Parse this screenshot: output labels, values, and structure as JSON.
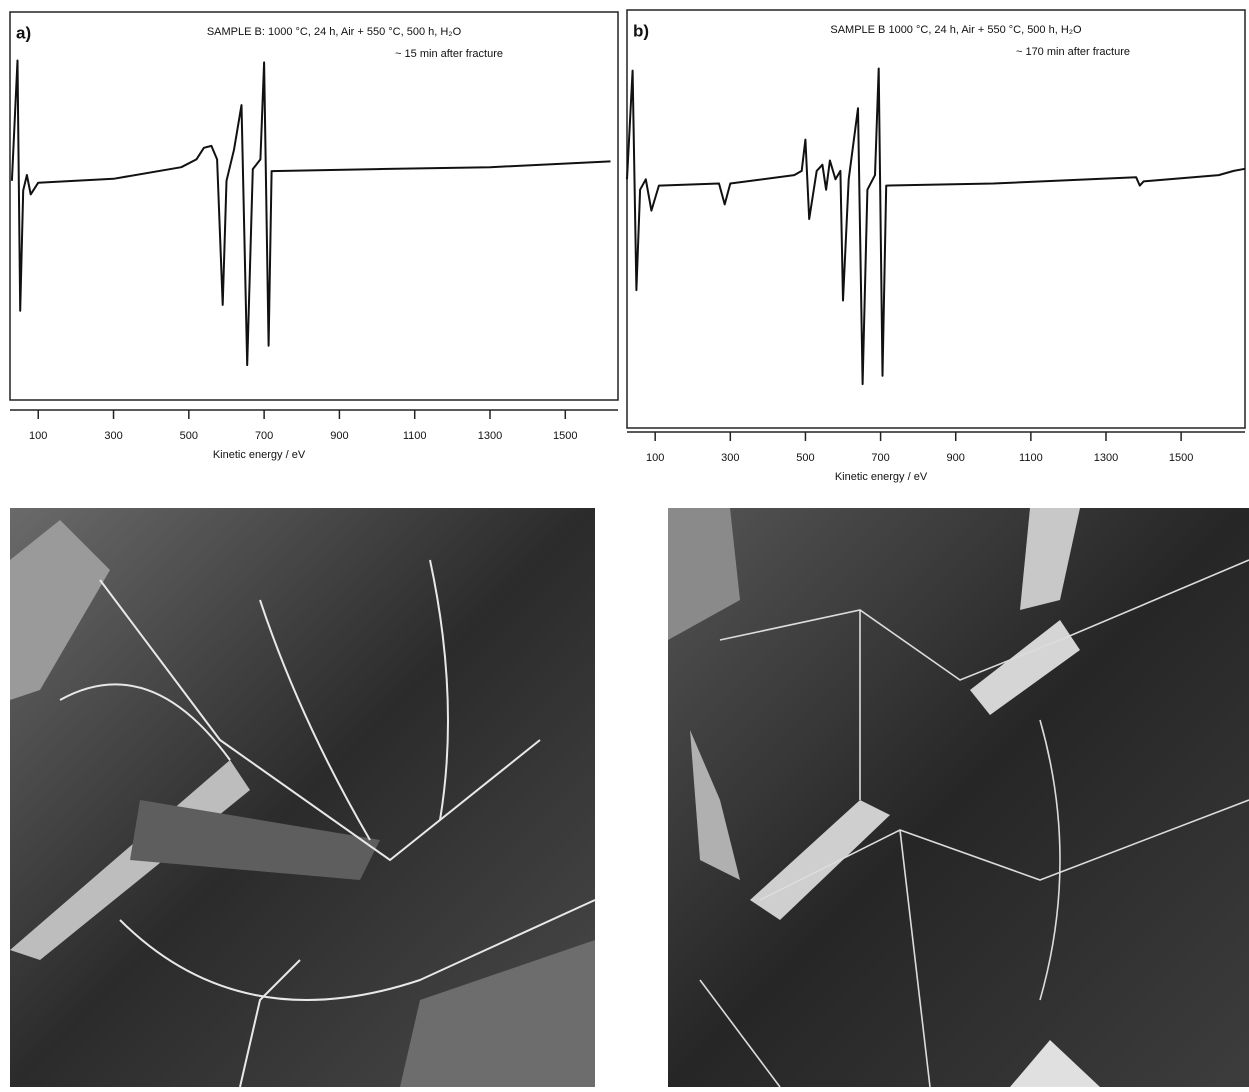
{
  "chart_data": [
    {
      "type": "line",
      "panel_label": "a)",
      "title": "SAMPLE B: 1000 °C, 24 h, Air + 550 °C, 500 h, H₂O",
      "subtitle": "~ 15 min after fracture",
      "x_label": "Kinetic energy / eV",
      "x": [
        30,
        45,
        52,
        60,
        70,
        80,
        100,
        300,
        480,
        520,
        540,
        560,
        575,
        590,
        600,
        620,
        640,
        655,
        670,
        690,
        700,
        712,
        720,
        1000,
        1300,
        1620
      ],
      "series": [
        {
          "color": "#111111",
          "values": [
            13,
            75,
            -54,
            8,
            16,
            6,
            12,
            14,
            20,
            24,
            30,
            31,
            24,
            -51,
            13,
            29,
            52,
            -82,
            19,
            24,
            74,
            -72,
            18,
            19,
            20,
            23
          ]
        }
      ],
      "xlim": [
        25,
        1640
      ],
      "ylim": [
        -100,
        100
      ],
      "xticks": [
        100,
        300,
        500,
        700,
        900,
        1100,
        1300,
        1500
      ]
    },
    {
      "type": "line",
      "panel_label": "b)",
      "title": "SAMPLE B 1000 °C, 24 h, Air + 550 °C, 500 h, H₂O",
      "subtitle": "~ 170 min after fracture",
      "x_label": "Kinetic energy / eV",
      "x": [
        25,
        40,
        50,
        60,
        75,
        90,
        110,
        270,
        285,
        300,
        470,
        490,
        500,
        510,
        530,
        545,
        555,
        565,
        580,
        593,
        600,
        615,
        640,
        652,
        665,
        685,
        695,
        705,
        715,
        1000,
        1380,
        1390,
        1400,
        1600,
        1640,
        1670
      ],
      "series": [
        {
          "color": "#111111",
          "values": [
            19,
            71,
            -34,
            14,
            19,
            4,
            16,
            17,
            7,
            17,
            21,
            23,
            38,
            0,
            23,
            26,
            14,
            28,
            19,
            23,
            -39,
            19,
            53,
            -79,
            14,
            21,
            72,
            -75,
            16,
            17,
            20,
            16,
            18,
            21,
            23,
            24
          ]
        }
      ],
      "xlim": [
        25,
        1670
      ],
      "ylim": [
        -100,
        100
      ],
      "xticks": [
        100,
        300,
        500,
        700,
        900,
        1100,
        1300,
        1500
      ]
    }
  ]
}
